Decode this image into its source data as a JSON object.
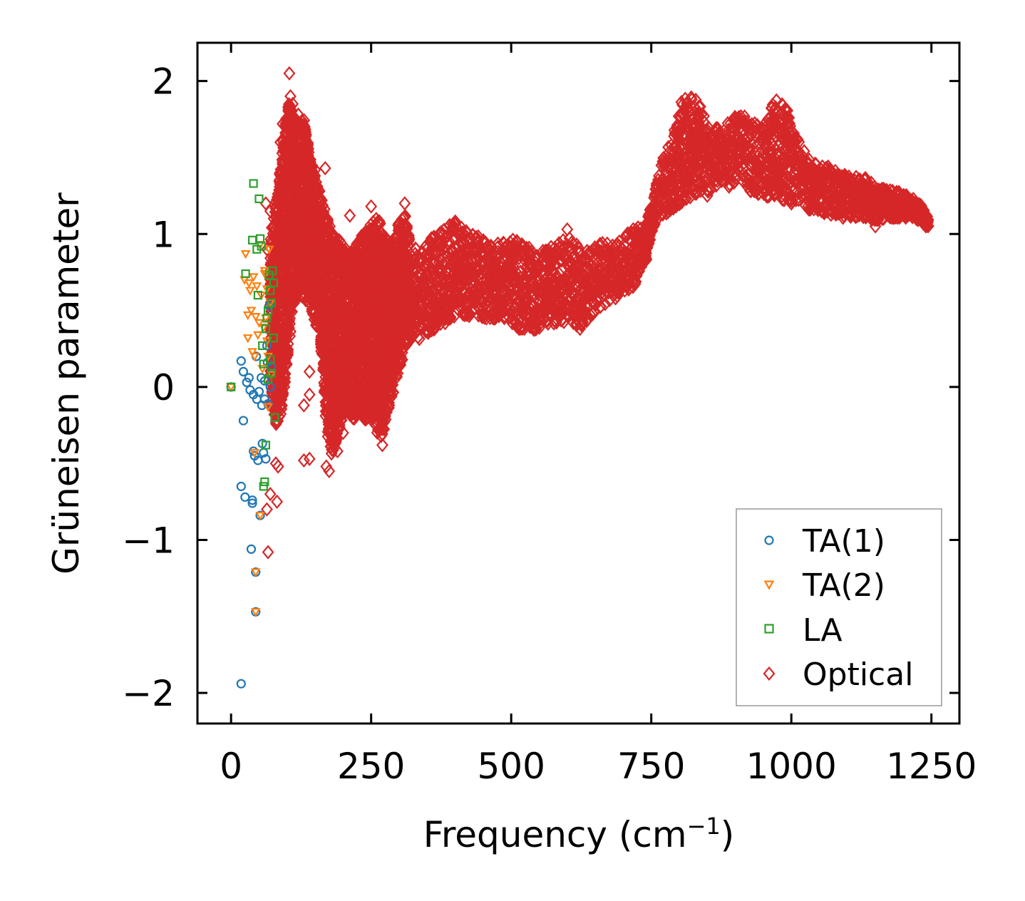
{
  "chart_data": {
    "type": "scatter",
    "title": "",
    "xlabel": "Frequency (cm",
    "xlabel_sup": "−1",
    "xlabel_end": ")",
    "ylabel": "Grüneisen parameter",
    "xlim": [
      -60,
      1300
    ],
    "ylim": [
      -2.2,
      2.25
    ],
    "xticks": [
      0,
      250,
      500,
      750,
      1000,
      1250
    ],
    "xtick_labels": [
      "0",
      "250",
      "500",
      "750",
      "1000",
      "1250"
    ],
    "yticks": [
      -2,
      -1,
      0,
      1,
      2
    ],
    "ytick_labels": [
      "−2",
      "−1",
      "0",
      "1",
      "2"
    ],
    "grid": false,
    "legend_position": "bottom-right",
    "series": [
      {
        "name": "TA(1)",
        "marker": "circle",
        "color": "#1f77b4",
        "points": [
          [
            0,
            0
          ],
          [
            18,
            -1.94
          ],
          [
            18,
            -0.65
          ],
          [
            18,
            0.17
          ],
          [
            22,
            0.1
          ],
          [
            22,
            -0.22
          ],
          [
            25,
            -0.72
          ],
          [
            28,
            0.03
          ],
          [
            32,
            0.06
          ],
          [
            34,
            -0.02
          ],
          [
            36,
            -1.06
          ],
          [
            38,
            -0.74
          ],
          [
            38,
            -0.76
          ],
          [
            40,
            -0.05
          ],
          [
            40,
            -0.42
          ],
          [
            42,
            -0.45
          ],
          [
            44,
            -1.21
          ],
          [
            44,
            -1.47
          ],
          [
            45,
            0.2
          ],
          [
            46,
            -0.08
          ],
          [
            48,
            -0.48
          ],
          [
            50,
            -0.03
          ],
          [
            52,
            -0.84
          ],
          [
            54,
            0.06
          ],
          [
            55,
            -0.12
          ],
          [
            56,
            -0.37
          ],
          [
            58,
            -0.43
          ],
          [
            60,
            -0.08
          ],
          [
            60,
            0.04
          ],
          [
            62,
            -0.47
          ],
          [
            64,
            0.27
          ],
          [
            65,
            0.16
          ],
          [
            66,
            -0.11
          ],
          [
            68,
            0.53
          ],
          [
            70,
            0.0
          ],
          [
            72,
            0.13
          ]
        ]
      },
      {
        "name": "TA(2)",
        "marker": "triangle-down",
        "color": "#ff7f0e",
        "points": [
          [
            0,
            0
          ],
          [
            24,
            0.7
          ],
          [
            26,
            0.87
          ],
          [
            30,
            0.32
          ],
          [
            30,
            0.47
          ],
          [
            32,
            0.68
          ],
          [
            34,
            0.63
          ],
          [
            36,
            0.5
          ],
          [
            38,
            0.23
          ],
          [
            40,
            0.72
          ],
          [
            42,
            0.2
          ],
          [
            42,
            -0.43
          ],
          [
            44,
            0.46
          ],
          [
            44,
            -1.21
          ],
          [
            44,
            -1.47
          ],
          [
            46,
            0.66
          ],
          [
            48,
            0.34
          ],
          [
            50,
            0.42
          ],
          [
            52,
            0.93
          ],
          [
            52,
            -0.84
          ],
          [
            54,
            0.6
          ],
          [
            56,
            0.12
          ],
          [
            58,
            0.39
          ],
          [
            60,
            0.76
          ],
          [
            60,
            0.74
          ],
          [
            62,
            0.45
          ],
          [
            64,
            0.64
          ],
          [
            64,
            0.3
          ],
          [
            66,
            0.2
          ],
          [
            66,
            -0.13
          ],
          [
            68,
            0.9
          ],
          [
            70,
            0.55
          ],
          [
            72,
            0.08
          ]
        ]
      },
      {
        "name": "LA",
        "marker": "square",
        "color": "#2ca02c",
        "points": [
          [
            0,
            0
          ],
          [
            26,
            0.74
          ],
          [
            38,
            0.96
          ],
          [
            40,
            1.33
          ],
          [
            46,
            0.9
          ],
          [
            48,
            0.6
          ],
          [
            50,
            1.23
          ],
          [
            52,
            0.97
          ],
          [
            54,
            0.92
          ],
          [
            56,
            0.27
          ],
          [
            58,
            0.15
          ],
          [
            58,
            -0.65
          ],
          [
            60,
            -0.62
          ],
          [
            62,
            -0.38
          ],
          [
            62,
            0.38
          ],
          [
            64,
            0.45
          ],
          [
            66,
            0.5
          ],
          [
            66,
            0.05
          ],
          [
            68,
            0.73
          ],
          [
            70,
            0.63
          ],
          [
            72,
            0.55
          ],
          [
            74,
            0.76
          ],
          [
            76,
            0.68
          ],
          [
            76,
            0.32
          ],
          [
            78,
            -0.2
          ],
          [
            70,
            0.18
          ],
          [
            72,
            0.09
          ]
        ]
      },
      {
        "name": "Optical",
        "marker": "diamond",
        "color": "#d62728",
        "envelope": [
          [
            70,
            -0.1,
            1.0
          ],
          [
            80,
            -0.3,
            1.25
          ],
          [
            90,
            -0.2,
            1.55
          ],
          [
            100,
            0.1,
            1.9
          ],
          [
            110,
            0.45,
            1.85
          ],
          [
            120,
            0.6,
            1.75
          ],
          [
            130,
            0.55,
            1.8
          ],
          [
            140,
            0.5,
            1.55
          ],
          [
            150,
            0.4,
            1.4
          ],
          [
            160,
            0.25,
            1.3
          ],
          [
            170,
            -0.3,
            1.15
          ],
          [
            180,
            -0.5,
            1.05
          ],
          [
            190,
            -0.35,
            1.0
          ],
          [
            200,
            -0.2,
            0.95
          ],
          [
            210,
            -0.2,
            0.9
          ],
          [
            220,
            -0.25,
            0.95
          ],
          [
            230,
            -0.15,
            1.0
          ],
          [
            240,
            -0.25,
            1.05
          ],
          [
            250,
            -0.2,
            1.1
          ],
          [
            260,
            -0.35,
            1.15
          ],
          [
            270,
            -0.35,
            1.1
          ],
          [
            280,
            -0.2,
            0.95
          ],
          [
            290,
            -0.05,
            1.0
          ],
          [
            300,
            0.1,
            1.1
          ],
          [
            310,
            0.2,
            1.15
          ],
          [
            320,
            0.3,
            0.95
          ],
          [
            340,
            0.3,
            0.9
          ],
          [
            360,
            0.35,
            1.0
          ],
          [
            380,
            0.4,
            1.05
          ],
          [
            400,
            0.45,
            1.1
          ],
          [
            420,
            0.45,
            1.05
          ],
          [
            440,
            0.45,
            1.0
          ],
          [
            460,
            0.42,
            0.95
          ],
          [
            480,
            0.45,
            0.95
          ],
          [
            500,
            0.4,
            1.0
          ],
          [
            520,
            0.35,
            0.95
          ],
          [
            540,
            0.35,
            0.9
          ],
          [
            560,
            0.4,
            0.9
          ],
          [
            580,
            0.4,
            0.95
          ],
          [
            600,
            0.4,
            1.0
          ],
          [
            620,
            0.35,
            0.95
          ],
          [
            640,
            0.45,
            0.9
          ],
          [
            660,
            0.5,
            0.95
          ],
          [
            680,
            0.55,
            0.95
          ],
          [
            700,
            0.6,
            1.0
          ],
          [
            720,
            0.65,
            1.05
          ],
          [
            740,
            0.8,
            1.05
          ],
          [
            750,
            1.0,
            1.2
          ],
          [
            770,
            1.1,
            1.5
          ],
          [
            790,
            1.15,
            1.7
          ],
          [
            810,
            1.2,
            1.95
          ],
          [
            830,
            1.25,
            1.9
          ],
          [
            850,
            1.25,
            1.75
          ],
          [
            870,
            1.3,
            1.7
          ],
          [
            890,
            1.3,
            1.75
          ],
          [
            910,
            1.35,
            1.8
          ],
          [
            930,
            1.25,
            1.75
          ],
          [
            950,
            1.25,
            1.7
          ],
          [
            970,
            1.2,
            1.9
          ],
          [
            990,
            1.2,
            1.85
          ],
          [
            1010,
            1.2,
            1.65
          ],
          [
            1030,
            1.15,
            1.5
          ],
          [
            1050,
            1.15,
            1.45
          ],
          [
            1070,
            1.1,
            1.45
          ],
          [
            1090,
            1.1,
            1.4
          ],
          [
            1110,
            1.1,
            1.38
          ],
          [
            1130,
            1.1,
            1.38
          ],
          [
            1150,
            1.08,
            1.32
          ],
          [
            1170,
            1.1,
            1.3
          ],
          [
            1190,
            1.1,
            1.28
          ],
          [
            1210,
            1.1,
            1.25
          ],
          [
            1230,
            1.08,
            1.2
          ],
          [
            1245,
            1.04,
            1.1
          ]
        ],
        "outliers": [
          [
            104,
            2.05
          ],
          [
            106,
            1.9
          ],
          [
            110,
            1.85
          ],
          [
            92,
            1.72
          ],
          [
            88,
            1.6
          ],
          [
            120,
            1.78
          ],
          [
            62,
            1.2
          ],
          [
            70,
            1.15
          ],
          [
            140,
            -0.47
          ],
          [
            130,
            -0.48
          ],
          [
            64,
            -0.8
          ],
          [
            66,
            -1.08
          ],
          [
            70,
            -0.7
          ],
          [
            82,
            -0.75
          ],
          [
            80,
            -0.5
          ],
          [
            84,
            -0.52
          ],
          [
            130,
            -0.12
          ],
          [
            140,
            -0.05
          ],
          [
            140,
            0.1
          ],
          [
            170,
            -0.52
          ],
          [
            175,
            -0.55
          ],
          [
            190,
            -0.42
          ],
          [
            200,
            -0.3
          ],
          [
            270,
            -0.38
          ],
          [
            310,
            1.2
          ],
          [
            600,
            1.03
          ],
          [
            850,
            1.25
          ],
          [
            1000,
            1.2
          ],
          [
            1150,
            1.05
          ],
          [
            1240,
            1.05
          ],
          [
            150,
            1.42
          ],
          [
            168,
            1.43
          ],
          [
            212,
            1.12
          ],
          [
            250,
            1.18
          ],
          [
            64,
            0.9
          ],
          [
            72,
            0.95
          ]
        ]
      }
    ]
  }
}
